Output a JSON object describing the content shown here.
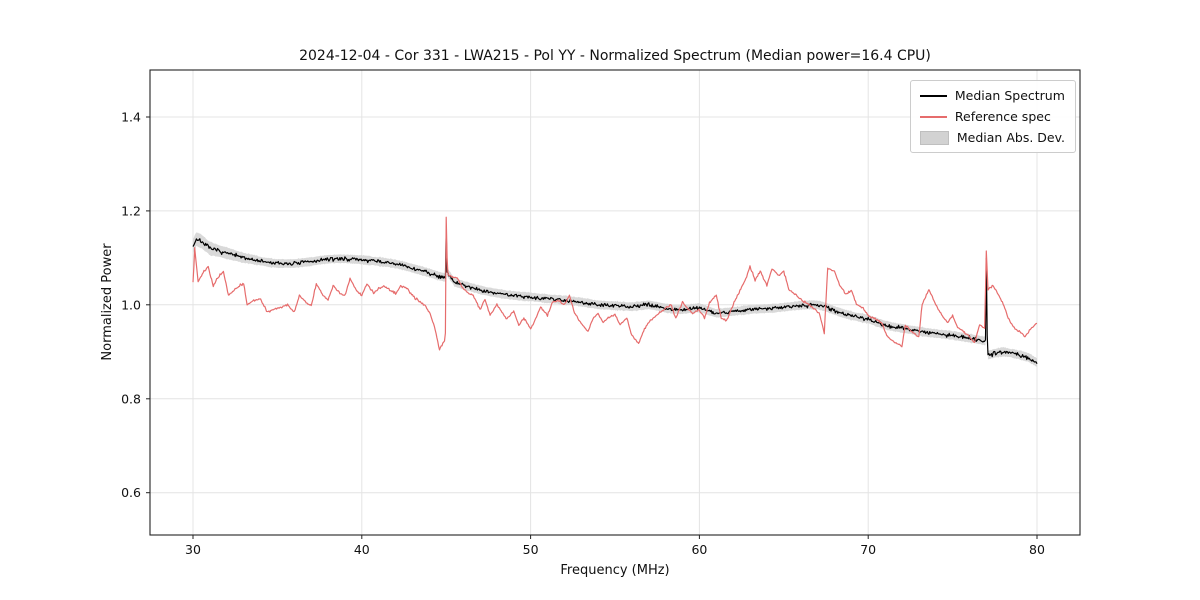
{
  "chart_data": {
    "type": "line",
    "title": "2024-12-04 - Cor 331 - LWA215 - Pol YY - Normalized Spectrum (Median power=16.4 CPU)",
    "xlabel": "Frequency (MHz)",
    "ylabel": "Normalized Power",
    "xlim": [
      27.45,
      82.55
    ],
    "ylim": [
      0.51,
      1.5
    ],
    "xticks": [
      30,
      40,
      50,
      60,
      70,
      80
    ],
    "yticks": [
      0.6,
      0.8,
      1.0,
      1.2,
      1.4
    ],
    "grid": true,
    "grid_color": "#e4e4e4",
    "frame_color": "#222222",
    "legend_position": "upper right",
    "band": {
      "name": "Median Abs. Dev.",
      "color": "#d2d2d2",
      "halfwidth": 0.0085,
      "start_extra": 0.006,
      "noise": 0.002,
      "follows": "Median Spectrum"
    },
    "series": [
      {
        "name": "Median Spectrum",
        "color": "#000000",
        "noise": 0.0042,
        "anchors": [
          [
            30,
            1.125
          ],
          [
            30.2,
            1.14
          ],
          [
            30.5,
            1.135
          ],
          [
            31,
            1.12
          ],
          [
            31.5,
            1.115
          ],
          [
            32,
            1.11
          ],
          [
            32.5,
            1.105
          ],
          [
            33,
            1.1
          ],
          [
            33.5,
            1.097
          ],
          [
            34,
            1.093
          ],
          [
            34.5,
            1.09
          ],
          [
            35,
            1.088
          ],
          [
            35.5,
            1.088
          ],
          [
            36,
            1.088
          ],
          [
            36.5,
            1.09
          ],
          [
            37,
            1.092
          ],
          [
            37.5,
            1.095
          ],
          [
            38,
            1.097
          ],
          [
            38.5,
            1.098
          ],
          [
            39,
            1.098
          ],
          [
            39.5,
            1.097
          ],
          [
            40,
            1.096
          ],
          [
            40.5,
            1.094
          ],
          [
            41,
            1.092
          ],
          [
            41.5,
            1.09
          ],
          [
            42,
            1.087
          ],
          [
            42.5,
            1.083
          ],
          [
            43,
            1.078
          ],
          [
            43.5,
            1.073
          ],
          [
            44,
            1.068
          ],
          [
            44.5,
            1.062
          ],
          [
            44.95,
            1.058
          ],
          [
            45,
            1.155
          ],
          [
            45.05,
            1.07
          ],
          [
            45.5,
            1.048
          ],
          [
            46,
            1.042
          ],
          [
            46.5,
            1.037
          ],
          [
            47,
            1.032
          ],
          [
            47.5,
            1.028
          ],
          [
            48,
            1.025
          ],
          [
            48.5,
            1.022
          ],
          [
            49,
            1.02
          ],
          [
            49.5,
            1.018
          ],
          [
            50,
            1.017
          ],
          [
            50.5,
            1.015
          ],
          [
            51,
            1.013
          ],
          [
            51.5,
            1.012
          ],
          [
            52,
            1.01
          ],
          [
            52.5,
            1.008
          ],
          [
            53,
            1.006
          ],
          [
            53.5,
            1.003
          ],
          [
            54,
            1.0
          ],
          [
            54.5,
            0.999
          ],
          [
            55,
            0.998
          ],
          [
            55.5,
            0.997
          ],
          [
            56,
            0.996
          ],
          [
            56.5,
            0.998
          ],
          [
            57,
            1.0
          ],
          [
            57.5,
            0.997
          ],
          [
            58,
            0.993
          ],
          [
            58.5,
            0.99
          ],
          [
            59,
            0.99
          ],
          [
            59.5,
            0.992
          ],
          [
            60,
            0.994
          ],
          [
            60.5,
            0.988
          ],
          [
            61,
            0.982
          ],
          [
            61.5,
            0.984
          ],
          [
            62,
            0.986
          ],
          [
            62.5,
            0.988
          ],
          [
            63,
            0.99
          ],
          [
            63.5,
            0.991
          ],
          [
            64,
            0.992
          ],
          [
            64.5,
            0.993
          ],
          [
            65,
            0.995
          ],
          [
            65.5,
            0.997
          ],
          [
            66,
            0.999
          ],
          [
            66.5,
            1.0
          ],
          [
            67,
            1.0
          ],
          [
            67.5,
            0.995
          ],
          [
            68,
            0.988
          ],
          [
            68.5,
            0.982
          ],
          [
            69,
            0.977
          ],
          [
            69.5,
            0.973
          ],
          [
            70,
            0.97
          ],
          [
            70.5,
            0.963
          ],
          [
            71,
            0.957
          ],
          [
            71.5,
            0.953
          ],
          [
            72,
            0.95
          ],
          [
            72.5,
            0.947
          ],
          [
            73,
            0.944
          ],
          [
            73.5,
            0.941
          ],
          [
            74,
            0.939
          ],
          [
            74.5,
            0.937
          ],
          [
            75,
            0.935
          ],
          [
            75.5,
            0.932
          ],
          [
            76,
            0.929
          ],
          [
            76.5,
            0.926
          ],
          [
            76.95,
            0.923
          ],
          [
            77,
            1.1
          ],
          [
            77.05,
            0.94
          ],
          [
            77.1,
            0.893
          ],
          [
            77.5,
            0.897
          ],
          [
            78,
            0.9
          ],
          [
            78.5,
            0.897
          ],
          [
            79,
            0.893
          ],
          [
            79.5,
            0.888
          ],
          [
            80,
            0.877
          ]
        ]
      },
      {
        "name": "Reference spec",
        "color": "#e66c6c",
        "noise": 0.0022,
        "anchors": [
          [
            30,
            1.05
          ],
          [
            30.1,
            1.12
          ],
          [
            30.3,
            1.05
          ],
          [
            30.6,
            1.07
          ],
          [
            30.9,
            1.08
          ],
          [
            31.2,
            1.04
          ],
          [
            31.5,
            1.06
          ],
          [
            31.8,
            1.07
          ],
          [
            32.1,
            1.02
          ],
          [
            32.4,
            1.03
          ],
          [
            32.7,
            1.04
          ],
          [
            33,
            1.045
          ],
          [
            33.2,
            1.0
          ],
          [
            33.6,
            1.01
          ],
          [
            34,
            1.012
          ],
          [
            34.4,
            0.985
          ],
          [
            34.8,
            0.99
          ],
          [
            35.2,
            0.995
          ],
          [
            35.6,
            1.0
          ],
          [
            36,
            0.985
          ],
          [
            36.3,
            1.02
          ],
          [
            36.7,
            1.005
          ],
          [
            37,
            0.998
          ],
          [
            37.3,
            1.045
          ],
          [
            37.7,
            1.02
          ],
          [
            38,
            1.01
          ],
          [
            38.3,
            1.04
          ],
          [
            38.7,
            1.025
          ],
          [
            39,
            1.02
          ],
          [
            39.3,
            1.055
          ],
          [
            39.7,
            1.03
          ],
          [
            40,
            1.02
          ],
          [
            40.3,
            1.045
          ],
          [
            40.7,
            1.025
          ],
          [
            41,
            1.035
          ],
          [
            41.3,
            1.04
          ],
          [
            41.7,
            1.03
          ],
          [
            42,
            1.025
          ],
          [
            42.3,
            1.04
          ],
          [
            42.7,
            1.035
          ],
          [
            43,
            1.02
          ],
          [
            43.3,
            1.01
          ],
          [
            43.7,
            1.0
          ],
          [
            44,
            0.985
          ],
          [
            44.3,
            0.955
          ],
          [
            44.6,
            0.905
          ],
          [
            44.9,
            0.925
          ],
          [
            44.95,
            0.94
          ],
          [
            45,
            1.185
          ],
          [
            45.05,
            1.1
          ],
          [
            45.1,
            1.065
          ],
          [
            45.4,
            1.06
          ],
          [
            45.7,
            1.055
          ],
          [
            46,
            1.035
          ],
          [
            46.3,
            1.025
          ],
          [
            46.6,
            1.02
          ],
          [
            47,
            0.99
          ],
          [
            47.3,
            1.012
          ],
          [
            47.6,
            0.978
          ],
          [
            48,
            1.0
          ],
          [
            48.3,
            0.985
          ],
          [
            48.6,
            0.97
          ],
          [
            49,
            0.988
          ],
          [
            49.3,
            0.956
          ],
          [
            49.6,
            0.972
          ],
          [
            50,
            0.95
          ],
          [
            50.3,
            0.97
          ],
          [
            50.6,
            0.995
          ],
          [
            51,
            0.978
          ],
          [
            51.3,
            1.005
          ],
          [
            51.6,
            1.01
          ],
          [
            52,
            1.0
          ],
          [
            52.3,
            1.02
          ],
          [
            52.6,
            0.982
          ],
          [
            53,
            0.96
          ],
          [
            53.4,
            0.945
          ],
          [
            53.7,
            0.97
          ],
          [
            54,
            0.982
          ],
          [
            54.3,
            0.962
          ],
          [
            54.7,
            0.975
          ],
          [
            55,
            0.978
          ],
          [
            55.3,
            0.958
          ],
          [
            55.7,
            0.972
          ],
          [
            56,
            0.935
          ],
          [
            56.4,
            0.918
          ],
          [
            56.7,
            0.945
          ],
          [
            57,
            0.962
          ],
          [
            57.4,
            0.977
          ],
          [
            57.7,
            0.985
          ],
          [
            58,
            0.992
          ],
          [
            58.3,
            1.002
          ],
          [
            58.6,
            0.972
          ],
          [
            59,
            1.006
          ],
          [
            59.3,
            0.992
          ],
          [
            59.6,
            0.982
          ],
          [
            60,
            0.99
          ],
          [
            60.3,
            0.972
          ],
          [
            60.6,
            1.005
          ],
          [
            61,
            1.02
          ],
          [
            61.3,
            0.972
          ],
          [
            61.6,
            0.966
          ],
          [
            62,
            1.0
          ],
          [
            62.4,
            1.03
          ],
          [
            62.8,
            1.06
          ],
          [
            63,
            1.082
          ],
          [
            63.3,
            1.052
          ],
          [
            63.6,
            1.072
          ],
          [
            64,
            1.042
          ],
          [
            64.3,
            1.078
          ],
          [
            64.7,
            1.062
          ],
          [
            65,
            1.072
          ],
          [
            65.3,
            1.032
          ],
          [
            65.7,
            1.022
          ],
          [
            66,
            1.012
          ],
          [
            66.4,
            1.002
          ],
          [
            66.8,
            0.992
          ],
          [
            67.1,
            0.982
          ],
          [
            67.4,
            0.94
          ],
          [
            67.6,
            1.078
          ],
          [
            68,
            1.072
          ],
          [
            68.3,
            1.042
          ],
          [
            68.7,
            1.022
          ],
          [
            69,
            1.032
          ],
          [
            69.3,
            1.002
          ],
          [
            69.7,
            0.992
          ],
          [
            70,
            0.977
          ],
          [
            70.4,
            0.97
          ],
          [
            70.8,
            0.962
          ],
          [
            71.1,
            0.935
          ],
          [
            71.5,
            0.922
          ],
          [
            72,
            0.912
          ],
          [
            72.2,
            0.957
          ],
          [
            72.6,
            0.942
          ],
          [
            73,
            0.93
          ],
          [
            73.2,
            1.002
          ],
          [
            73.6,
            1.032
          ],
          [
            74,
            1.002
          ],
          [
            74.3,
            0.982
          ],
          [
            74.7,
            0.962
          ],
          [
            75,
            0.977
          ],
          [
            75.3,
            0.952
          ],
          [
            75.7,
            0.942
          ],
          [
            76,
            0.932
          ],
          [
            76.3,
            0.92
          ],
          [
            76.6,
            0.957
          ],
          [
            76.9,
            0.95
          ],
          [
            77,
            1.115
          ],
          [
            77.1,
            1.032
          ],
          [
            77.4,
            1.042
          ],
          [
            77.7,
            1.022
          ],
          [
            78,
            1.002
          ],
          [
            78.3,
            0.972
          ],
          [
            78.6,
            0.952
          ],
          [
            79,
            0.942
          ],
          [
            79.3,
            0.932
          ],
          [
            79.6,
            0.948
          ],
          [
            80,
            0.962
          ]
        ]
      }
    ]
  }
}
